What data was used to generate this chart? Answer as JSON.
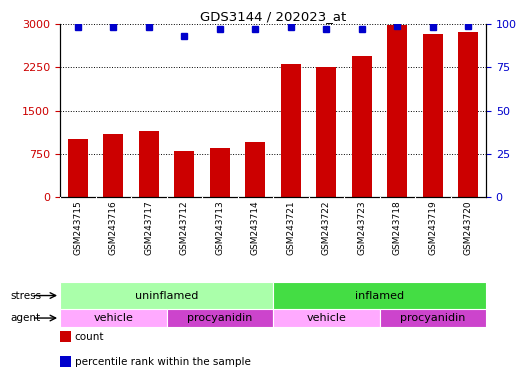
{
  "title": "GDS3144 / 202023_at",
  "samples": [
    "GSM243715",
    "GSM243716",
    "GSM243717",
    "GSM243712",
    "GSM243713",
    "GSM243714",
    "GSM243721",
    "GSM243722",
    "GSM243723",
    "GSM243718",
    "GSM243719",
    "GSM243720"
  ],
  "counts": [
    1000,
    1100,
    1150,
    800,
    855,
    960,
    2300,
    2260,
    2450,
    2980,
    2830,
    2870
  ],
  "percentiles": [
    98,
    98,
    98,
    93,
    97,
    97,
    98,
    97,
    97,
    99,
    98,
    99
  ],
  "ylim_left": [
    0,
    3000
  ],
  "ylim_right": [
    0,
    100
  ],
  "yticks_left": [
    0,
    750,
    1500,
    2250,
    3000
  ],
  "yticks_right": [
    0,
    25,
    50,
    75,
    100
  ],
  "bar_color": "#CC0000",
  "dot_color": "#0000CC",
  "stress_groups": [
    {
      "label": "uninflamed",
      "start": 0,
      "end": 6,
      "color": "#AAFFAA"
    },
    {
      "label": "inflamed",
      "start": 6,
      "end": 12,
      "color": "#44DD44"
    }
  ],
  "agent_groups": [
    {
      "label": "vehicle",
      "start": 0,
      "end": 3,
      "color": "#FFAAFF"
    },
    {
      "label": "procyanidin",
      "start": 3,
      "end": 6,
      "color": "#CC44CC"
    },
    {
      "label": "vehicle",
      "start": 6,
      "end": 9,
      "color": "#FFAAFF"
    },
    {
      "label": "procyanidin",
      "start": 9,
      "end": 12,
      "color": "#CC44CC"
    }
  ],
  "legend_items": [
    {
      "label": "count",
      "color": "#CC0000"
    },
    {
      "label": "percentile rank within the sample",
      "color": "#0000CC"
    }
  ],
  "stress_label": "stress",
  "agent_label": "agent",
  "xtick_bg": "#DDDDDD"
}
